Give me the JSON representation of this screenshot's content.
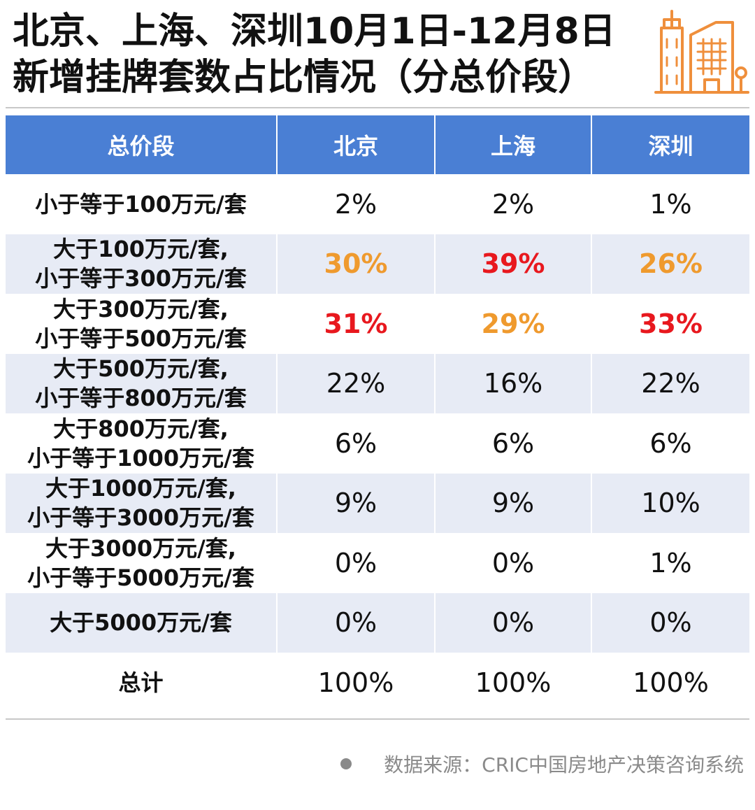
{
  "title": {
    "line1": "北京、上海、深圳10月1日-12月8日",
    "line2": "新增挂牌套数占比情况（分总价段）"
  },
  "logo_icon": "city-buildings-icon",
  "colors": {
    "header_bg": "#4a7fd4",
    "stripe_bg": "#e7ebf5",
    "highlight_red": "#e8181e",
    "highlight_orange": "#ef9a2e",
    "logo_orange": "#ef8f3c"
  },
  "chart_data": {
    "type": "table",
    "columns": [
      "总价段",
      "北京",
      "上海",
      "深圳"
    ],
    "rows": [
      {
        "range": [
          "小于等于100万元/套"
        ],
        "values": [
          "2%",
          "2%",
          "1%"
        ],
        "highlight": [
          "",
          "",
          ""
        ]
      },
      {
        "range": [
          "大于100万元/套,",
          "小于等于300万元/套"
        ],
        "values": [
          "30%",
          "39%",
          "26%"
        ],
        "highlight": [
          "orange",
          "red",
          "orange"
        ]
      },
      {
        "range": [
          "大于300万元/套,",
          "小于等于500万元/套"
        ],
        "values": [
          "31%",
          "29%",
          "33%"
        ],
        "highlight": [
          "red",
          "orange",
          "red"
        ]
      },
      {
        "range": [
          "大于500万元/套,",
          "小于等于800万元/套"
        ],
        "values": [
          "22%",
          "16%",
          "22%"
        ],
        "highlight": [
          "",
          "",
          ""
        ]
      },
      {
        "range": [
          "大于800万元/套,",
          "小于等于1000万元/套"
        ],
        "values": [
          "6%",
          "6%",
          "6%"
        ],
        "highlight": [
          "",
          "",
          ""
        ]
      },
      {
        "range": [
          "大于1000万元/套,",
          "小于等于3000万元/套"
        ],
        "values": [
          "9%",
          "9%",
          "10%"
        ],
        "highlight": [
          "",
          "",
          ""
        ]
      },
      {
        "range": [
          "大于3000万元/套,",
          "小于等于5000万元/套"
        ],
        "values": [
          "0%",
          "0%",
          "1%"
        ],
        "highlight": [
          "",
          "",
          ""
        ]
      },
      {
        "range": [
          "大于5000万元/套"
        ],
        "values": [
          "0%",
          "0%",
          "0%"
        ],
        "highlight": [
          "",
          "",
          ""
        ]
      },
      {
        "range": [
          "总计"
        ],
        "values": [
          "100%",
          "100%",
          "100%"
        ],
        "highlight": [
          "",
          "",
          ""
        ]
      }
    ]
  },
  "source": "数据来源：CRIC中国房地产决策咨询系统"
}
